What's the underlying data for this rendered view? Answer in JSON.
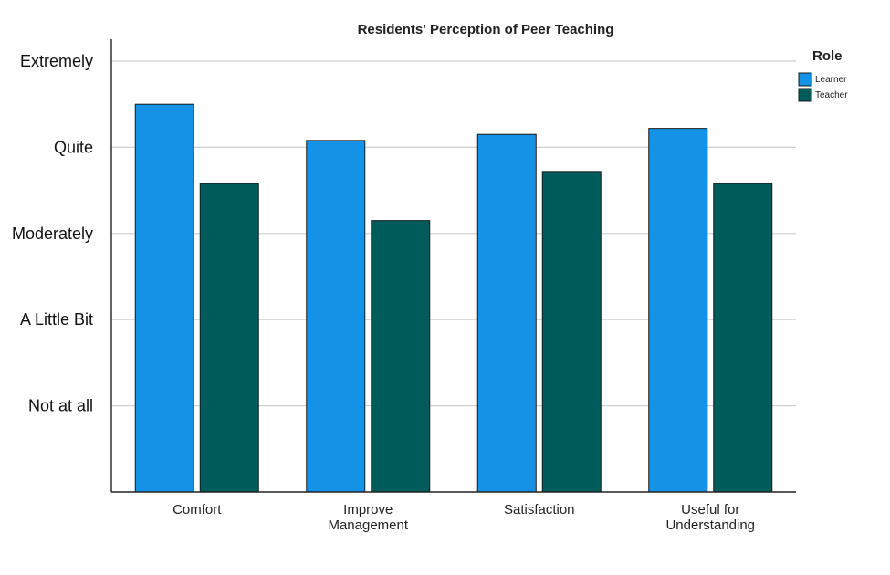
{
  "chart_data": {
    "type": "bar",
    "title": "Residents' Perception of Peer Teaching",
    "xlabel": "",
    "ylabel": "",
    "categories": [
      [
        "Comfort"
      ],
      [
        "Improve",
        "Management"
      ],
      [
        "Satisfaction"
      ],
      [
        "Useful for",
        "Understanding"
      ]
    ],
    "y_tick_labels": [
      "Not at all",
      "A Little Bit",
      "Moderately",
      "Quite",
      "Extremely"
    ],
    "y_tick_values": [
      1,
      2,
      3,
      4,
      5
    ],
    "ylim": [
      0,
      5.2
    ],
    "grid": true,
    "legend": {
      "title": "Role",
      "placement": "right"
    },
    "series": [
      {
        "name": "Learner",
        "color": "#1591E6",
        "values": [
          4.5,
          4.08,
          4.15,
          4.22
        ]
      },
      {
        "name": "Teacher",
        "color": "#005B5B",
        "values": [
          3.58,
          3.15,
          3.72,
          3.58
        ]
      }
    ]
  }
}
